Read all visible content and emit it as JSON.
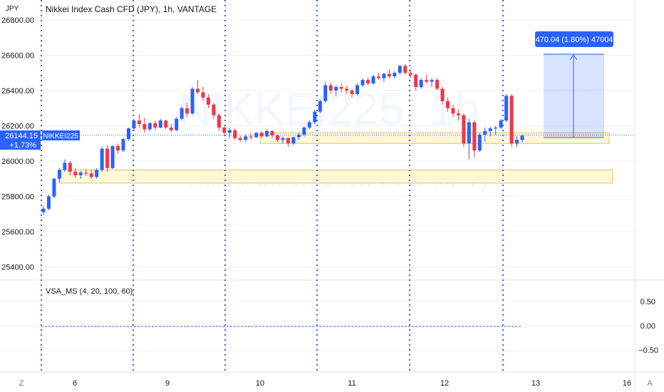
{
  "currency": "JPY",
  "legend": {
    "title": "Nikkei Index Cash CFD (JPY), 1h, VANTAGE"
  },
  "watermark": {
    "symbol": "NIKKEI225, 1h",
    "name": "Nikkei Index Cash CFD (JPY)"
  },
  "price_badge": {
    "price": "26144.15",
    "change": "+1.73%",
    "symbol": "NIKKEI225"
  },
  "measure_label": "470.04 (1.80%) 47004",
  "indicator": {
    "name": "VSA_MS (4, 20, 100, 60)",
    "tick_labels": [
      "0.50",
      "0.00",
      "−0.50"
    ]
  },
  "corner_buttons": {
    "left": "Z",
    "right": "A"
  },
  "colors": {
    "up": "#2962ff",
    "down": "#f23645",
    "zone_fill": "#fff7d6",
    "zone_stroke": "#d9c56b",
    "session_line": "#2962ff",
    "measure_fill": "#2962ff",
    "grid": "#eef0f5"
  },
  "chart_data": {
    "type": "candlestick",
    "timeframe": "1h",
    "y_ticks": [
      25400,
      25600,
      25800,
      26000,
      26200,
      26400,
      26600,
      26800
    ],
    "y_tick_labels": [
      "25400.00",
      "25600.00",
      "25800.00",
      "26000.00",
      "26200.00",
      "26400.00",
      "26600.00",
      "26800.00"
    ],
    "x_tick_labels": [
      "6",
      "9",
      "10",
      "11",
      "12",
      "13",
      "16"
    ],
    "last_price": 26144.15,
    "ohlc": [
      [
        25710,
        25745,
        25695,
        25730
      ],
      [
        25730,
        25810,
        25720,
        25800
      ],
      [
        25800,
        25905,
        25790,
        25900
      ],
      [
        25900,
        25960,
        25880,
        25950
      ],
      [
        25950,
        26010,
        25940,
        25990
      ],
      [
        25990,
        26000,
        25920,
        25940
      ],
      [
        25940,
        25960,
        25905,
        25920
      ],
      [
        25920,
        25945,
        25900,
        25935
      ],
      [
        25935,
        25955,
        25915,
        25930
      ],
      [
        25930,
        25950,
        25900,
        25910
      ],
      [
        25910,
        25960,
        25900,
        25950
      ],
      [
        25950,
        26080,
        25940,
        26070
      ],
      [
        26070,
        26090,
        25940,
        25960
      ],
      [
        25960,
        26090,
        25955,
        26085
      ],
      [
        26085,
        26100,
        26040,
        26060
      ],
      [
        26060,
        26130,
        26050,
        26125
      ],
      [
        26125,
        26190,
        26115,
        26185
      ],
      [
        26185,
        26240,
        26170,
        26230
      ],
      [
        26230,
        26265,
        26190,
        26210
      ],
      [
        26210,
        26245,
        26160,
        26180
      ],
      [
        26180,
        26220,
        26170,
        26215
      ],
      [
        26215,
        26230,
        26175,
        26190
      ],
      [
        26190,
        26240,
        26185,
        26230
      ],
      [
        26230,
        26235,
        26180,
        26190
      ],
      [
        26190,
        26210,
        26165,
        26175
      ],
      [
        26175,
        26250,
        26170,
        26240
      ],
      [
        26240,
        26310,
        26230,
        26300
      ],
      [
        26300,
        26330,
        26250,
        26270
      ],
      [
        26270,
        26420,
        26260,
        26410
      ],
      [
        26410,
        26460,
        26380,
        26390
      ],
      [
        26390,
        26420,
        26340,
        26360
      ],
      [
        26360,
        26380,
        26300,
        26320
      ],
      [
        26320,
        26330,
        26240,
        26260
      ],
      [
        26260,
        26270,
        26170,
        26190
      ],
      [
        26190,
        26200,
        26140,
        26160
      ],
      [
        26160,
        26190,
        26130,
        26175
      ],
      [
        26175,
        26185,
        26120,
        26130
      ],
      [
        26130,
        26145,
        26110,
        26120
      ],
      [
        26120,
        26150,
        26110,
        26140
      ],
      [
        26140,
        26160,
        26120,
        26135
      ],
      [
        26135,
        26165,
        26130,
        26160
      ],
      [
        26160,
        26170,
        26130,
        26140
      ],
      [
        26140,
        26180,
        26135,
        26170
      ],
      [
        26170,
        26175,
        26130,
        26145
      ],
      [
        26145,
        26150,
        26110,
        26120
      ],
      [
        26120,
        26140,
        26100,
        26130
      ],
      [
        26130,
        26135,
        26080,
        26100
      ],
      [
        26100,
        26140,
        26090,
        26135
      ],
      [
        26135,
        26160,
        26120,
        26150
      ],
      [
        26150,
        26200,
        26140,
        26190
      ],
      [
        26190,
        26230,
        26180,
        26220
      ],
      [
        26220,
        26290,
        26210,
        26280
      ],
      [
        26280,
        26350,
        26270,
        26340
      ],
      [
        26340,
        26450,
        26330,
        26430
      ],
      [
        26430,
        26445,
        26380,
        26400
      ],
      [
        26400,
        26430,
        26370,
        26420
      ],
      [
        26420,
        26440,
        26390,
        26410
      ],
      [
        26410,
        26425,
        26380,
        26400
      ],
      [
        26400,
        26410,
        26360,
        26380
      ],
      [
        26380,
        26440,
        26370,
        26430
      ],
      [
        26430,
        26470,
        26420,
        26460
      ],
      [
        26460,
        26475,
        26430,
        26440
      ],
      [
        26440,
        26490,
        26435,
        26480
      ],
      [
        26480,
        26500,
        26460,
        26470
      ],
      [
        26470,
        26500,
        26450,
        26495
      ],
      [
        26495,
        26520,
        26470,
        26480
      ],
      [
        26480,
        26510,
        26470,
        26500
      ],
      [
        26500,
        26545,
        26490,
        26540
      ],
      [
        26540,
        26550,
        26490,
        26500
      ],
      [
        26500,
        26520,
        26470,
        26490
      ],
      [
        26490,
        26495,
        26400,
        26420
      ],
      [
        26420,
        26470,
        26410,
        26460
      ],
      [
        26460,
        26490,
        26440,
        26450
      ],
      [
        26450,
        26470,
        26420,
        26460
      ],
      [
        26460,
        26470,
        26400,
        26410
      ],
      [
        26410,
        26420,
        26320,
        26340
      ],
      [
        26340,
        26360,
        26280,
        26300
      ],
      [
        26300,
        26320,
        26250,
        26270
      ],
      [
        26270,
        26290,
        26230,
        26260
      ],
      [
        26260,
        26270,
        26080,
        26100
      ],
      [
        26100,
        26240,
        26010,
        26220
      ],
      [
        26220,
        26230,
        26020,
        26060
      ],
      [
        26060,
        26160,
        26050,
        26150
      ],
      [
        26150,
        26190,
        26110,
        26170
      ],
      [
        26170,
        26195,
        26140,
        26185
      ],
      [
        26185,
        26200,
        26150,
        26190
      ],
      [
        26190,
        26240,
        26180,
        26230
      ],
      [
        26230,
        26380,
        26220,
        26370
      ],
      [
        26370,
        26380,
        26080,
        26100
      ],
      [
        26100,
        26140,
        26080,
        26120
      ],
      [
        26120,
        26150,
        26105,
        26144.15
      ]
    ],
    "zones": [
      {
        "low": 25875,
        "high": 25950
      },
      {
        "low": 26100,
        "high": 26160
      }
    ],
    "indicator_value": 0.0
  }
}
